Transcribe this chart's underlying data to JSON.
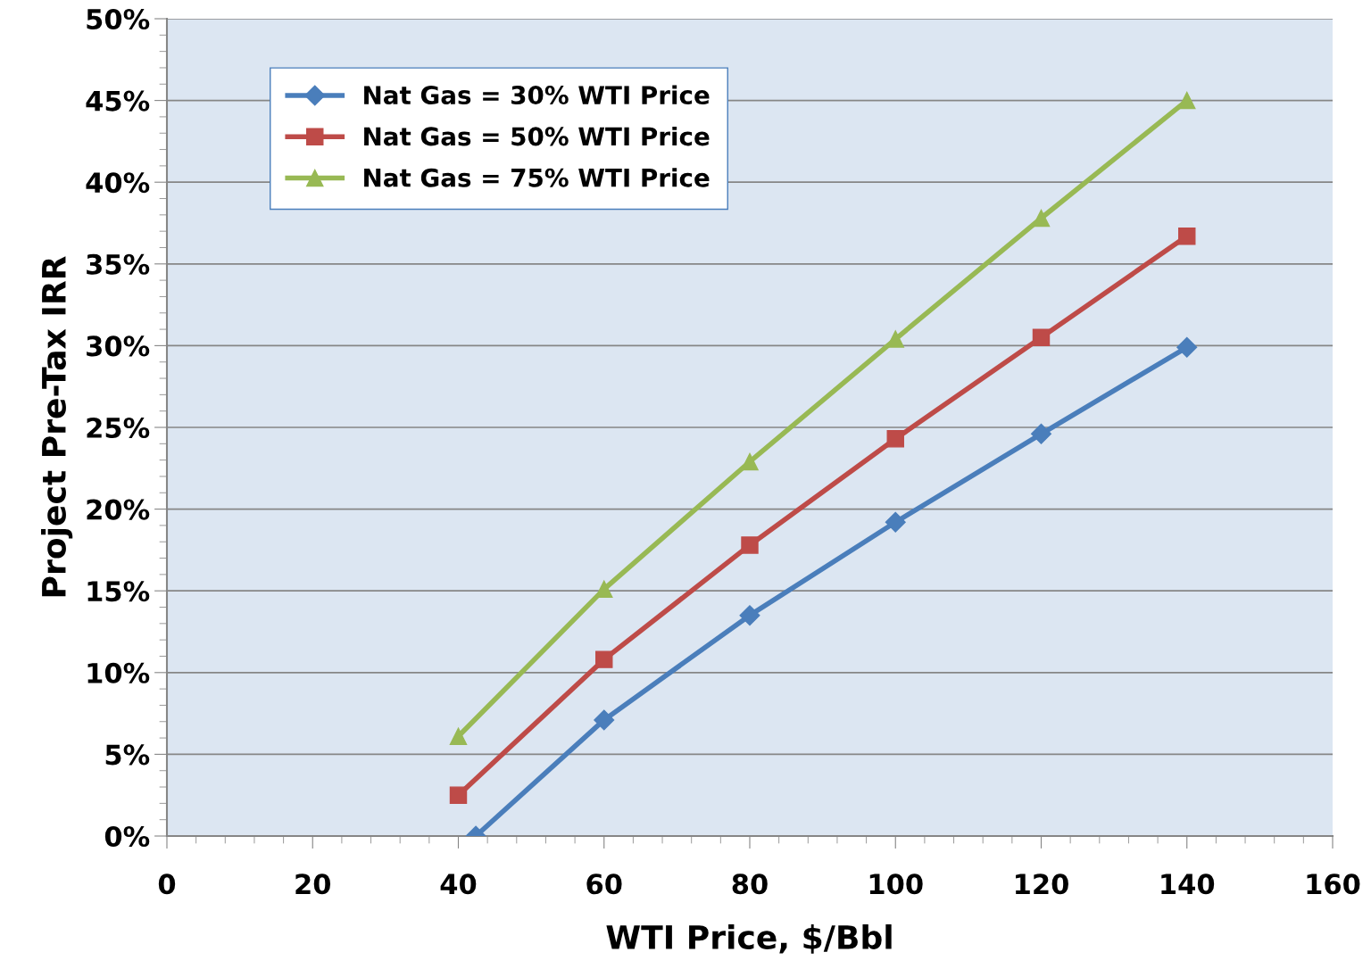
{
  "chart_data": {
    "type": "line",
    "xlabel": "WTI Price, $/Bbl",
    "ylabel": "Project Pre-Tax IRR",
    "x": [
      40,
      60,
      80,
      100,
      120,
      140
    ],
    "series": [
      {
        "name": "Nat Gas = 30% WTI Price",
        "color": "#4a7ebb",
        "marker": "diamond",
        "x": [
          42.4,
          60,
          80,
          100,
          120,
          140
        ],
        "values": [
          0,
          7.1,
          13.5,
          19.2,
          24.6,
          29.9
        ]
      },
      {
        "name": "Nat Gas = 50% WTI Price",
        "color": "#be4b48",
        "marker": "square",
        "values": [
          2.5,
          10.8,
          17.8,
          24.3,
          30.5,
          36.7
        ]
      },
      {
        "name": "Nat Gas = 75% WTI Price",
        "color": "#98b954",
        "marker": "triangle",
        "values": [
          6.1,
          15.1,
          22.9,
          30.4,
          37.8,
          45.0
        ]
      }
    ],
    "xlim": [
      0,
      160
    ],
    "xticks": [
      0,
      20,
      40,
      60,
      80,
      100,
      120,
      140,
      160
    ],
    "ylim": [
      0,
      50
    ],
    "yticks": [
      {
        "value": 0,
        "label": "0%"
      },
      {
        "value": 5,
        "label": "5%"
      },
      {
        "value": 10,
        "label": "10%"
      },
      {
        "value": 15,
        "label": "15%"
      },
      {
        "value": 20,
        "label": "20%"
      },
      {
        "value": 25,
        "label": "25%"
      },
      {
        "value": 30,
        "label": "30%"
      },
      {
        "value": 35,
        "label": "35%"
      },
      {
        "value": 40,
        "label": "40%"
      },
      {
        "value": 45,
        "label": "45%"
      },
      {
        "value": 50,
        "label": "50%"
      }
    ],
    "grid": "y",
    "legend": "top left",
    "line_style": "solid"
  }
}
